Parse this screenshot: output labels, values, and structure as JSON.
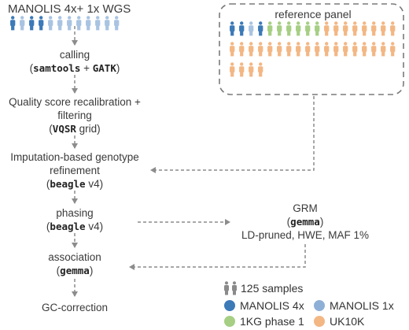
{
  "title": "MANOLIS 4x+ 1x WGS",
  "reference_panel": {
    "label": "reference panel"
  },
  "steps": {
    "calling": {
      "line1": "calling",
      "paren_open": "(",
      "tool1": "samtools",
      "plus": " + ",
      "tool2": "GATK",
      "paren_close": ")"
    },
    "qsr": {
      "line1": "Quality score recalibration +",
      "line2": "filtering",
      "paren_open": "(",
      "tool": "VQSR",
      "suffix": " grid)"
    },
    "imputation": {
      "line1": "Imputation-based genotype",
      "line2": "refinement",
      "paren_open": "(",
      "tool": "beagle",
      "suffix": " v4)"
    },
    "phasing": {
      "line1": "phasing",
      "paren_open": "(",
      "tool": "beagle",
      "suffix": " v4)"
    },
    "association": {
      "line1": "association",
      "paren_open": "(",
      "tool": "gemma",
      "paren_close": ")"
    },
    "gc": {
      "line1": "GC-correction"
    }
  },
  "grm": {
    "line1": "GRM",
    "paren_open": "(",
    "tool": "gemma",
    "paren_close": ")",
    "line3": "LD-pruned, HWE, MAF 1%"
  },
  "legend": {
    "samples_label": "125  samples",
    "items": [
      {
        "label": "MANOLIS 4x",
        "color": "#3c7ab8"
      },
      {
        "label": "MANOLIS 1x",
        "color": "#8fb0d6"
      },
      {
        "label": "1KG phase 1",
        "color": "#a6cf84"
      },
      {
        "label": "UK10K",
        "color": "#f3b784"
      }
    ]
  },
  "colors": {
    "manolis4x": "#3c7ab8",
    "manolis1x": "#a9c4e2",
    "kg": "#a6cf84",
    "uk10k": "#f3b784",
    "arrow": "#8c8c8c",
    "person_grey": "#8a8a8a"
  }
}
